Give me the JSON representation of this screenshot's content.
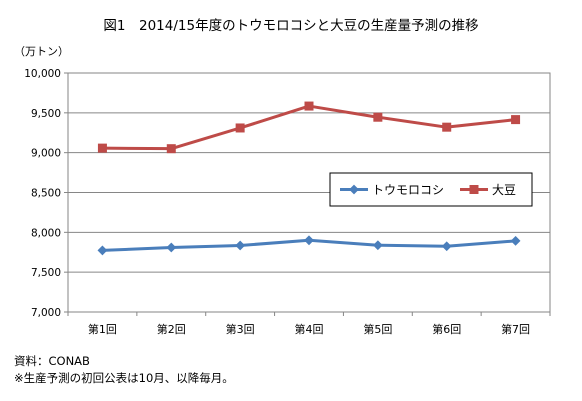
{
  "chart_data": {
    "type": "line",
    "title": "図1　2014/15年度のトウモロコシと大豆の生産量予測の推移",
    "ylabel": "（万トン）",
    "xlabel": "",
    "categories": [
      "第1回",
      "第2回",
      "第3回",
      "第4回",
      "第5回",
      "第6回",
      "第7回"
    ],
    "ylim": [
      7000,
      10000
    ],
    "yticks": [
      "7,000",
      "7,500",
      "8,000",
      "8,500",
      "9,000",
      "9,500",
      "10,000"
    ],
    "yticks_values": [
      7000,
      7500,
      8000,
      8500,
      9000,
      9500,
      10000
    ],
    "grid": true,
    "legend_position": "right",
    "series": [
      {
        "name": "トウモロコシ",
        "values": [
          7773,
          7810,
          7835,
          7900,
          7838,
          7825,
          7893
        ],
        "color": "#4a7ebb",
        "marker": "diamond"
      },
      {
        "name": "大豆",
        "values": [
          9057,
          9050,
          9310,
          9585,
          9445,
          9320,
          9415
        ],
        "color": "#be4b48",
        "marker": "square"
      }
    ]
  },
  "notes": {
    "source": "資料：CONAB",
    "footnote": "※生産予測の初回公表は10月、以降毎月。"
  }
}
